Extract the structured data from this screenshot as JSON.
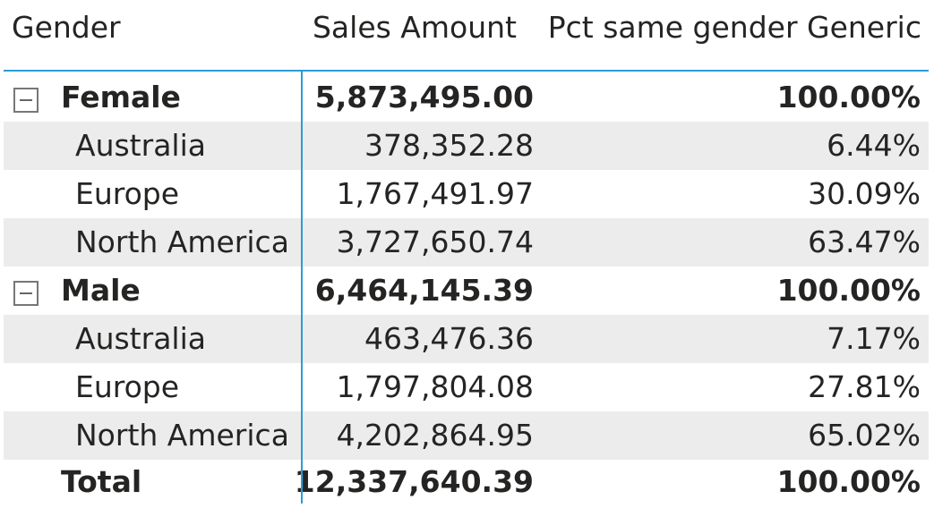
{
  "headers": {
    "gender": "Gender",
    "sales": "Sales Amount",
    "pct": "Pct same gender Generic"
  },
  "groups": [
    {
      "label": "Female",
      "sales": "5,873,495.00",
      "pct": "100.00%",
      "children": [
        {
          "label": "Australia",
          "sales": "378,352.28",
          "pct": "6.44%"
        },
        {
          "label": "Europe",
          "sales": "1,767,491.97",
          "pct": "30.09%"
        },
        {
          "label": "North America",
          "sales": "3,727,650.74",
          "pct": "63.47%"
        }
      ]
    },
    {
      "label": "Male",
      "sales": "6,464,145.39",
      "pct": "100.00%",
      "children": [
        {
          "label": "Australia",
          "sales": "463,476.36",
          "pct": "7.17%"
        },
        {
          "label": "Europe",
          "sales": "1,797,804.08",
          "pct": "27.81%"
        },
        {
          "label": "North America",
          "sales": "4,202,864.95",
          "pct": "65.02%"
        }
      ]
    }
  ],
  "total": {
    "label": "Total",
    "sales": "12,337,640.39",
    "pct": "100.00%"
  },
  "colors": {
    "accent_line": "#2e9bd6",
    "row_shade": "#ececec",
    "text": "#252423"
  },
  "icons": {
    "expand_toggle": "minus-square-icon"
  }
}
